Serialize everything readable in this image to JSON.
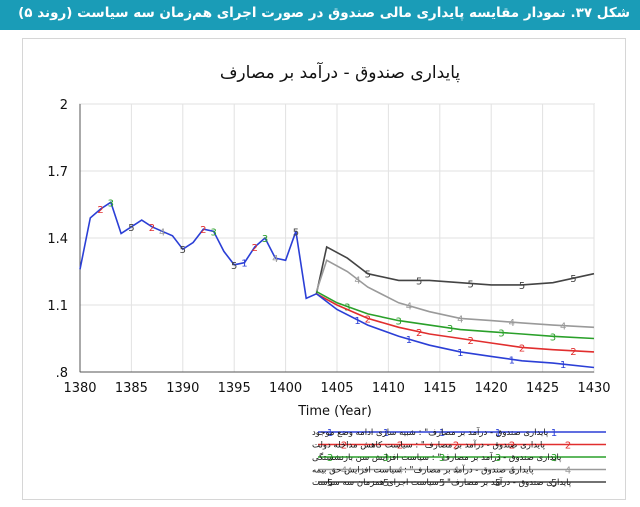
{
  "banner": {
    "text": "شکل ۳۷. نمودار مقایسه پایداری مالی صندوق در صورت اجرای هم‌زمان سه سیاست (روند ۵)"
  },
  "colors": {
    "banner": "#1a9cb7"
  },
  "chart_data": {
    "type": "line",
    "title": "پایداری صندوق - درآمد بر مصارف",
    "xlabel": "Time (Year)",
    "ylabel": "",
    "xlim": [
      1380,
      1430
    ],
    "ylim": [
      0.8,
      2.0
    ],
    "x_ticks": [
      "1380",
      "1385",
      "1390",
      "1395",
      "1400",
      "1405",
      "1410",
      "1415",
      "1420",
      "1425",
      "1430"
    ],
    "y_ticks": [
      {
        "value": 2.0,
        "label": "2"
      },
      {
        "value": 1.7,
        "label": "1.7"
      },
      {
        "value": 1.4,
        "label": "1.4"
      },
      {
        "value": 1.1,
        "label": "1.1"
      },
      {
        "value": 0.8,
        "label": ".8"
      }
    ],
    "grid": true,
    "legend_position": "bottom",
    "common_history": {
      "x": [
        1380,
        1381,
        1382,
        1383,
        1384,
        1385,
        1386,
        1387,
        1388,
        1389,
        1390,
        1391,
        1392,
        1393,
        1394,
        1395,
        1396,
        1397,
        1398,
        1399,
        1400,
        1401,
        1402,
        1403
      ],
      "y": [
        1.26,
        1.49,
        1.53,
        1.56,
        1.42,
        1.45,
        1.48,
        1.45,
        1.43,
        1.41,
        1.35,
        1.38,
        1.44,
        1.43,
        1.34,
        1.28,
        1.29,
        1.36,
        1.4,
        1.31,
        1.3,
        1.43,
        1.13,
        1.15
      ]
    },
    "series": [
      {
        "name": "پایداری صندوق - درآمد بر مصارف\" : شبیه سازی ادامه وضع موجود",
        "marker": "1",
        "color": "#2b3fd6",
        "x": [
          1403,
          1405,
          1408,
          1411,
          1414,
          1417,
          1420,
          1423,
          1426,
          1430
        ],
        "y": [
          1.15,
          1.08,
          1.01,
          0.96,
          0.92,
          0.89,
          0.87,
          0.85,
          0.84,
          0.82
        ]
      },
      {
        "name": "پایداری صندوق - درآمد بر مصارف\" : سیاست کاهش مداخله دولت",
        "marker": "2",
        "color": "#e12e2e",
        "x": [
          1403,
          1405,
          1408,
          1411,
          1414,
          1417,
          1420,
          1423,
          1426,
          1430
        ],
        "y": [
          1.15,
          1.1,
          1.04,
          1.0,
          0.97,
          0.95,
          0.93,
          0.91,
          0.9,
          0.89
        ]
      },
      {
        "name": "پایداری صندوق - درآمد بر مصارف\" : سیاست افزایش سن بازنشستگی",
        "marker": "3",
        "color": "#2aa02a",
        "x": [
          1403,
          1405,
          1408,
          1411,
          1414,
          1417,
          1420,
          1423,
          1426,
          1430
        ],
        "y": [
          1.16,
          1.11,
          1.06,
          1.03,
          1.01,
          0.99,
          0.98,
          0.97,
          0.96,
          0.95
        ]
      },
      {
        "name": "پایداری صندوق - درآمد بر مصارف\" : سیاست افزایش حق بیمه",
        "marker": "4",
        "color": "#9a9a9a",
        "x": [
          1403,
          1404,
          1406,
          1408,
          1411,
          1414,
          1417,
          1420,
          1423,
          1426,
          1430
        ],
        "y": [
          1.16,
          1.3,
          1.25,
          1.18,
          1.11,
          1.07,
          1.04,
          1.03,
          1.02,
          1.01,
          1.0
        ]
      },
      {
        "name": "پایداری صندوق - درآمد بر مصارف\" : سیاست اجرای همزمان سه سیاست",
        "marker": "5",
        "color": "#444444",
        "x": [
          1403,
          1404,
          1406,
          1408,
          1411,
          1414,
          1417,
          1420,
          1423,
          1426,
          1430
        ],
        "y": [
          1.15,
          1.36,
          1.31,
          1.24,
          1.21,
          1.21,
          1.2,
          1.19,
          1.19,
          1.2,
          1.24
        ]
      }
    ],
    "history_markers": [
      {
        "x": 1382,
        "label": "2",
        "color": "#e12e2e"
      },
      {
        "x": 1383,
        "label": "3",
        "color": "#2aa02a"
      },
      {
        "x": 1385,
        "label": "5",
        "color": "#444444"
      },
      {
        "x": 1387,
        "label": "2",
        "color": "#e12e2e"
      },
      {
        "x": 1388,
        "label": "4",
        "color": "#9a9a9a"
      },
      {
        "x": 1390,
        "label": "5",
        "color": "#444444"
      },
      {
        "x": 1392,
        "label": "2",
        "color": "#e12e2e"
      },
      {
        "x": 1393,
        "label": "3",
        "color": "#2aa02a"
      },
      {
        "x": 1395,
        "label": "5",
        "color": "#444444"
      },
      {
        "x": 1396,
        "label": "1",
        "color": "#2b3fd6"
      },
      {
        "x": 1397,
        "label": "2",
        "color": "#e12e2e"
      },
      {
        "x": 1398,
        "label": "3",
        "color": "#2aa02a"
      },
      {
        "x": 1399,
        "label": "4",
        "color": "#9a9a9a"
      },
      {
        "x": 1401,
        "label": "5",
        "color": "#444444"
      }
    ]
  }
}
